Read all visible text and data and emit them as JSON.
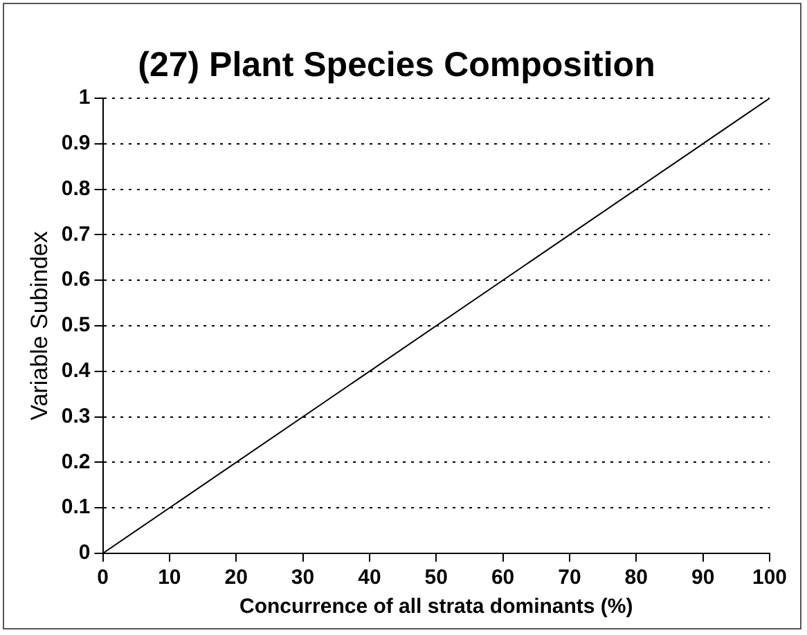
{
  "chart_data": {
    "type": "line",
    "title": "(27) Plant Species Composition",
    "xlabel": "Concurrence of all strata dominants (%)",
    "ylabel": "Variable Subindex",
    "x": [
      0,
      100
    ],
    "series": [
      {
        "color": "#000000",
        "values": [
          0,
          1
        ]
      }
    ],
    "xlim": [
      0,
      100
    ],
    "xticks": [
      0,
      10,
      20,
      30,
      40,
      50,
      60,
      70,
      80,
      90,
      100
    ],
    "ylim": [
      0,
      1
    ],
    "yticks": [
      0,
      0.1,
      0.2,
      0.3,
      0.4,
      0.5,
      0.6,
      0.7,
      0.8,
      0.9,
      1
    ],
    "grid": "y",
    "line_style": "solid",
    "marker": "none",
    "legend": false
  }
}
